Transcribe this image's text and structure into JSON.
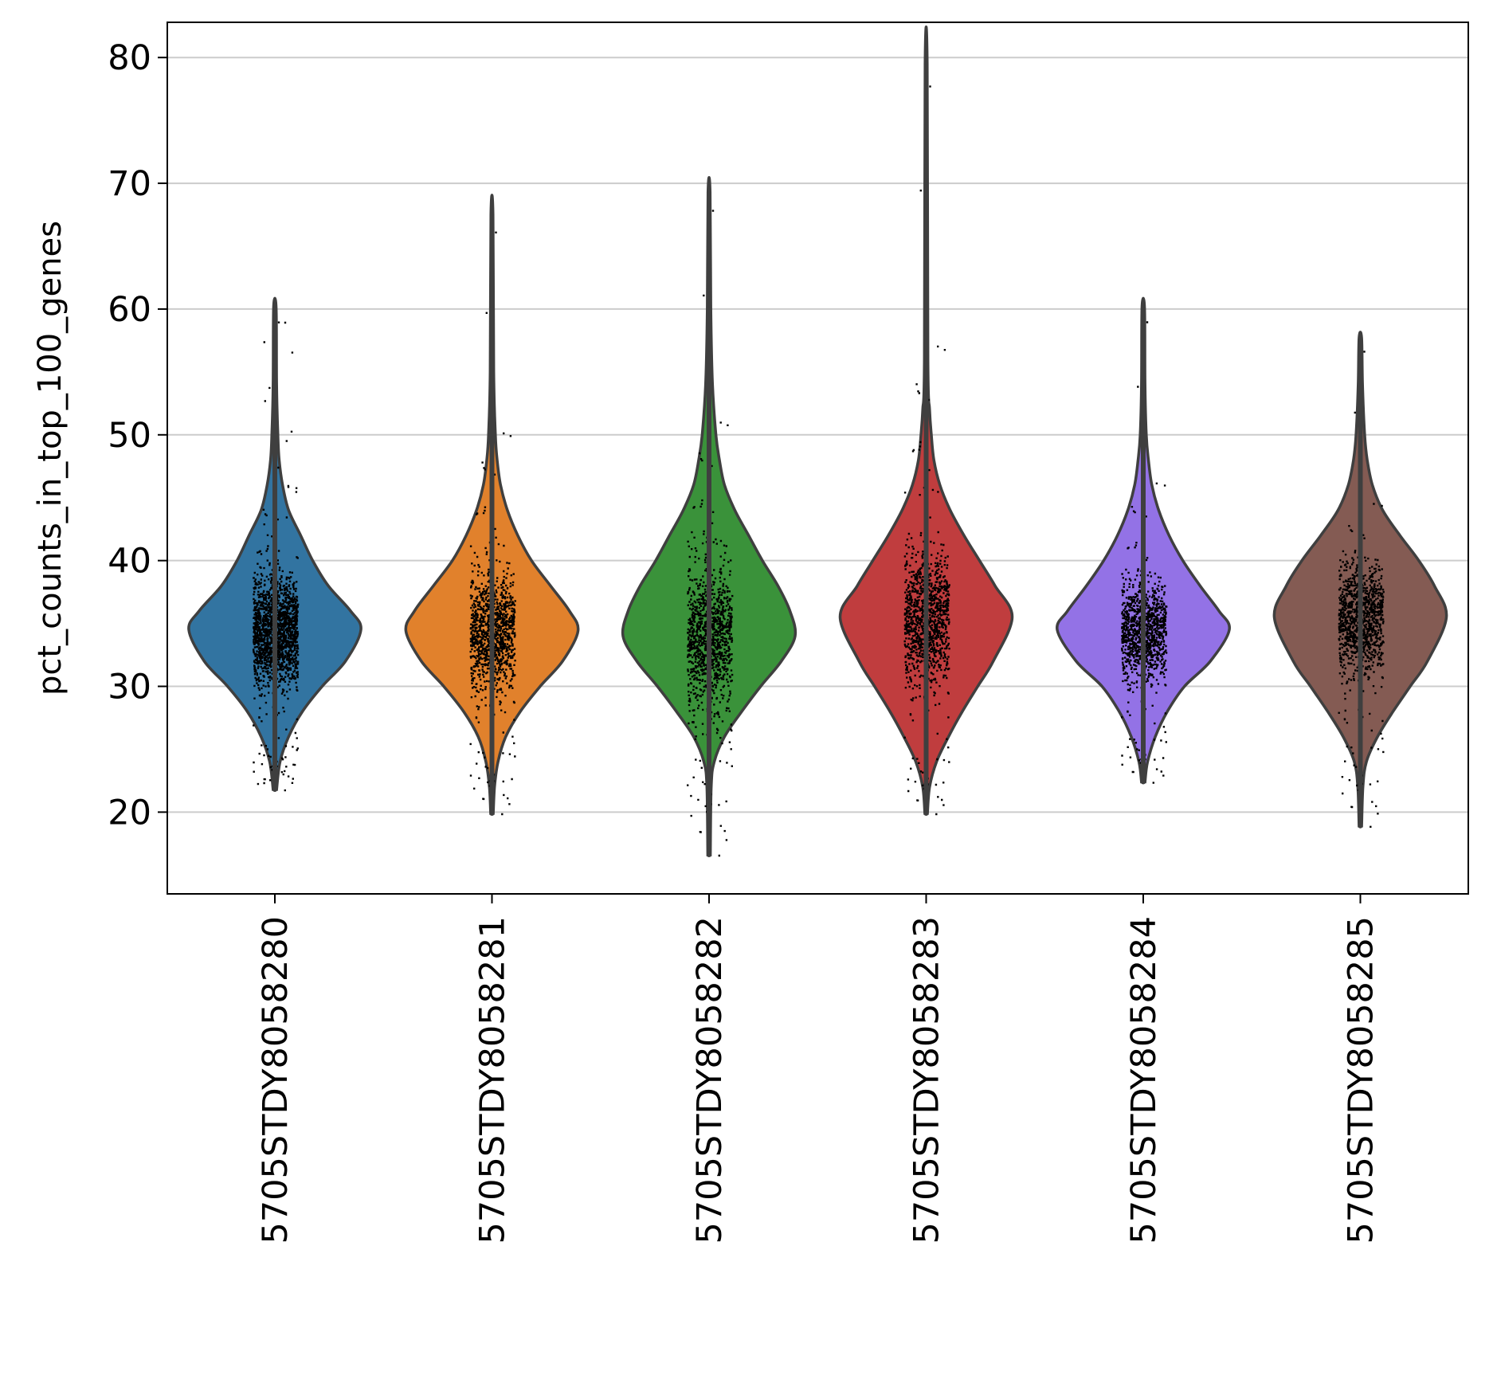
{
  "chart_data": {
    "type": "violin",
    "ylabel": "pct_counts_in_top_100_genes",
    "xlabel": "",
    "ylim": [
      13.5,
      82.8
    ],
    "y_ticks": [
      20,
      30,
      40,
      50,
      60,
      70,
      80
    ],
    "grid": "horizontal",
    "categories": [
      "5705STDY8058280",
      "5705STDY8058281",
      "5705STDY8058282",
      "5705STDY8058283",
      "5705STDY8058284",
      "5705STDY8058285"
    ],
    "series": [
      {
        "category": "5705STDY8058280",
        "color": "#3274a1",
        "min": 21.8,
        "max": 60.1,
        "mode": 34.5,
        "dense_low": 25.5,
        "dense_high": 46.0,
        "density": [
          [
            21.8,
            0.02
          ],
          [
            24,
            0.06
          ],
          [
            26,
            0.16
          ],
          [
            28,
            0.32
          ],
          [
            30,
            0.55
          ],
          [
            32,
            0.82
          ],
          [
            34.5,
            1.0
          ],
          [
            36,
            0.88
          ],
          [
            38,
            0.62
          ],
          [
            40,
            0.44
          ],
          [
            42,
            0.3
          ],
          [
            44,
            0.16
          ],
          [
            46,
            0.09
          ],
          [
            48,
            0.05
          ],
          [
            50,
            0.035
          ],
          [
            54,
            0.02
          ],
          [
            60.1,
            0.015
          ]
        ]
      },
      {
        "category": "5705STDY8058281",
        "color": "#e1812c",
        "min": 19.9,
        "max": 67.5,
        "mode": 34.4,
        "dense_low": 25.0,
        "dense_high": 48.0,
        "density": [
          [
            19.9,
            0.015
          ],
          [
            22,
            0.03
          ],
          [
            24,
            0.07
          ],
          [
            26,
            0.16
          ],
          [
            28,
            0.33
          ],
          [
            30,
            0.56
          ],
          [
            32,
            0.82
          ],
          [
            34.4,
            1.0
          ],
          [
            36,
            0.9
          ],
          [
            38,
            0.68
          ],
          [
            40,
            0.46
          ],
          [
            42,
            0.3
          ],
          [
            44,
            0.18
          ],
          [
            46,
            0.1
          ],
          [
            48,
            0.06
          ],
          [
            50,
            0.04
          ],
          [
            55,
            0.02
          ],
          [
            67.5,
            0.012
          ]
        ]
      },
      {
        "category": "5705STDY8058282",
        "color": "#3a923a",
        "min": 16.6,
        "max": 69.3,
        "mode": 34.0,
        "dense_low": 24.5,
        "dense_high": 52.0,
        "density": [
          [
            16.6,
            0.015
          ],
          [
            22,
            0.025
          ],
          [
            24,
            0.06
          ],
          [
            26,
            0.18
          ],
          [
            28,
            0.38
          ],
          [
            30,
            0.6
          ],
          [
            32,
            0.84
          ],
          [
            34,
            1.0
          ],
          [
            36,
            0.94
          ],
          [
            38,
            0.8
          ],
          [
            40,
            0.62
          ],
          [
            42,
            0.46
          ],
          [
            44,
            0.3
          ],
          [
            46,
            0.18
          ],
          [
            48,
            0.12
          ],
          [
            50,
            0.08
          ],
          [
            54,
            0.04
          ],
          [
            60,
            0.02
          ],
          [
            69.3,
            0.012
          ]
        ]
      },
      {
        "category": "5705STDY8058283",
        "color": "#c03d3e",
        "min": 19.9,
        "max": 79.5,
        "mode": 35.5,
        "dense_low": 24.5,
        "dense_high": 50.0,
        "density": [
          [
            19.9,
            0.015
          ],
          [
            22,
            0.04
          ],
          [
            24,
            0.12
          ],
          [
            26,
            0.26
          ],
          [
            28,
            0.42
          ],
          [
            30,
            0.6
          ],
          [
            32,
            0.78
          ],
          [
            35.5,
            1.0
          ],
          [
            38,
            0.8
          ],
          [
            40,
            0.62
          ],
          [
            42,
            0.44
          ],
          [
            44,
            0.28
          ],
          [
            46,
            0.16
          ],
          [
            48,
            0.09
          ],
          [
            50,
            0.06
          ],
          [
            52,
            0.04
          ],
          [
            56,
            0.02
          ],
          [
            79.5,
            0.012
          ]
        ]
      },
      {
        "category": "5705STDY8058284",
        "color": "#9372e6",
        "min": 22.4,
        "max": 60.1,
        "mode": 34.5,
        "dense_low": 26.0,
        "dense_high": 45.0,
        "density": [
          [
            22.4,
            0.02
          ],
          [
            24,
            0.05
          ],
          [
            26,
            0.14
          ],
          [
            28,
            0.28
          ],
          [
            30,
            0.48
          ],
          [
            32,
            0.78
          ],
          [
            34.5,
            1.0
          ],
          [
            36,
            0.88
          ],
          [
            38,
            0.66
          ],
          [
            40,
            0.46
          ],
          [
            42,
            0.3
          ],
          [
            44,
            0.18
          ],
          [
            46,
            0.1
          ],
          [
            48,
            0.06
          ],
          [
            50,
            0.035
          ],
          [
            54,
            0.02
          ],
          [
            60.1,
            0.015
          ]
        ]
      },
      {
        "category": "5705STDY8058285",
        "color": "#845b53",
        "min": 18.9,
        "max": 57.7,
        "mode": 35.5,
        "dense_low": 25.5,
        "dense_high": 47.0,
        "density": [
          [
            18.9,
            0.015
          ],
          [
            22,
            0.03
          ],
          [
            24,
            0.07
          ],
          [
            26,
            0.2
          ],
          [
            28,
            0.38
          ],
          [
            30,
            0.58
          ],
          [
            32,
            0.78
          ],
          [
            35.5,
            1.0
          ],
          [
            38,
            0.86
          ],
          [
            40,
            0.68
          ],
          [
            42,
            0.46
          ],
          [
            44,
            0.26
          ],
          [
            46,
            0.14
          ],
          [
            48,
            0.08
          ],
          [
            50,
            0.05
          ],
          [
            54,
            0.025
          ],
          [
            57.7,
            0.015
          ]
        ]
      }
    ]
  }
}
